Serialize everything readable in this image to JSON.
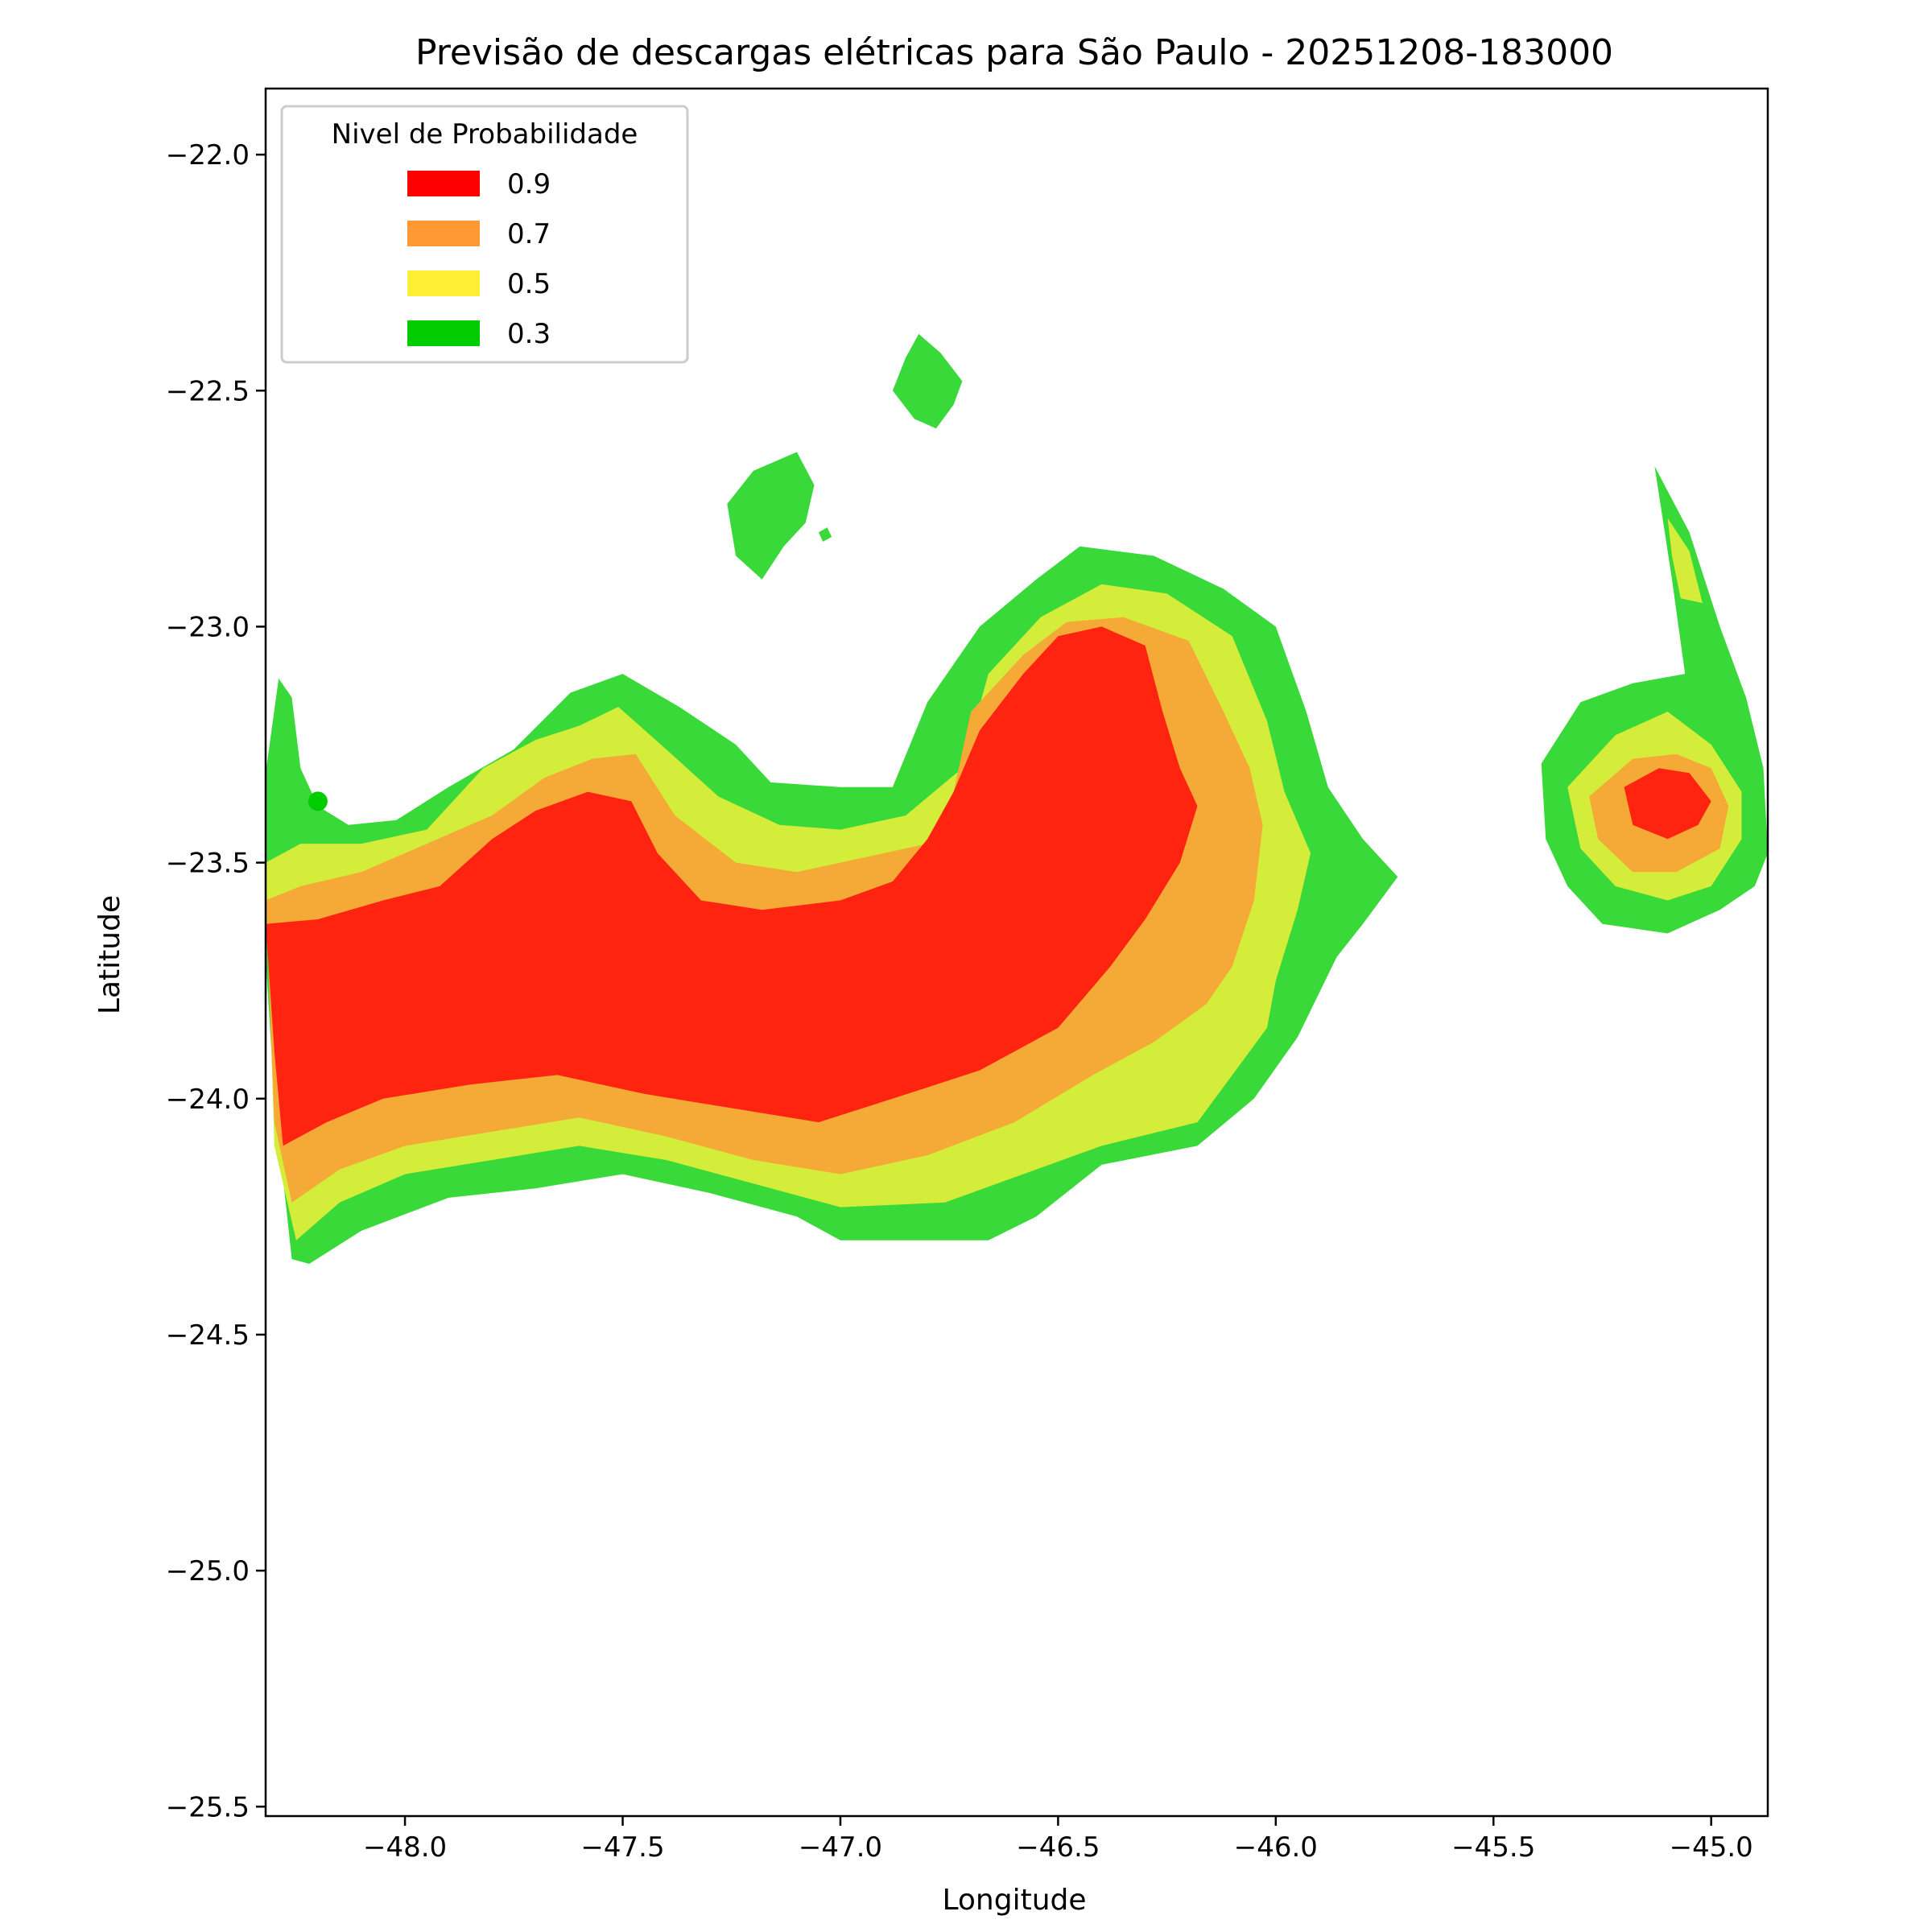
{
  "chart_data": {
    "type": "contour",
    "title": "Previsão de descargas elétricas para São Paulo - 20251208-183000",
    "xlabel": "Longitude",
    "ylabel": "Latitude",
    "xlim": [
      -48.32,
      -44.87
    ],
    "ylim": [
      -25.52,
      -21.86
    ],
    "x_ticks": [
      -48.0,
      -47.5,
      -47.0,
      -46.5,
      -46.0,
      -45.5,
      -45.0
    ],
    "x_tick_labels": [
      "−48.0",
      "−47.5",
      "−47.0",
      "−46.5",
      "−46.0",
      "−45.5",
      "−45.0"
    ],
    "y_ticks": [
      -22.0,
      -22.5,
      -23.0,
      -23.5,
      -24.0,
      -24.5,
      -25.0,
      -25.5
    ],
    "y_tick_labels": [
      "−22.0",
      "−22.5",
      "−23.0",
      "−23.5",
      "−24.0",
      "−24.5",
      "−25.0",
      "−25.5"
    ],
    "grid": false,
    "legend": {
      "title": "Nivel de Probabilidade",
      "placement": "top-left",
      "entries": [
        {
          "label": "0.9",
          "color": "#ff0000"
        },
        {
          "label": "0.7",
          "color": "#ff9933"
        },
        {
          "label": "0.5",
          "color": "#ffee33"
        },
        {
          "label": "0.3",
          "color": "#00cc00"
        }
      ]
    },
    "levels": [
      {
        "level": "0.3",
        "color": "#38d938",
        "regions": [
          [
            [
              -48.32,
              -23.31
            ],
            [
              -48.29,
              -23.11
            ],
            [
              -48.26,
              -23.15
            ],
            [
              -48.24,
              -23.3
            ],
            [
              -48.2,
              -23.38
            ],
            [
              -48.13,
              -23.42
            ],
            [
              -48.02,
              -23.41
            ],
            [
              -47.9,
              -23.34
            ],
            [
              -47.75,
              -23.26
            ],
            [
              -47.62,
              -23.14
            ],
            [
              -47.5,
              -23.1
            ],
            [
              -47.37,
              -23.17
            ],
            [
              -47.24,
              -23.25
            ],
            [
              -47.16,
              -23.33
            ],
            [
              -47.0,
              -23.34
            ],
            [
              -46.88,
              -23.34
            ],
            [
              -46.8,
              -23.16
            ],
            [
              -46.68,
              -23.0
            ],
            [
              -46.55,
              -22.9
            ],
            [
              -46.45,
              -22.83
            ],
            [
              -46.28,
              -22.85
            ],
            [
              -46.12,
              -22.92
            ],
            [
              -46.0,
              -23.0
            ],
            [
              -45.93,
              -23.18
            ],
            [
              -45.88,
              -23.34
            ],
            [
              -45.8,
              -23.45
            ],
            [
              -45.72,
              -23.53
            ],
            [
              -45.8,
              -23.63
            ],
            [
              -45.86,
              -23.7
            ],
            [
              -45.95,
              -23.87
            ],
            [
              -46.05,
              -24.0
            ],
            [
              -46.18,
              -24.1
            ],
            [
              -46.4,
              -24.14
            ],
            [
              -46.55,
              -24.25
            ],
            [
              -46.66,
              -24.3
            ],
            [
              -46.85,
              -24.3
            ],
            [
              -47.0,
              -24.3
            ],
            [
              -47.1,
              -24.25
            ],
            [
              -47.3,
              -24.2
            ],
            [
              -47.5,
              -24.16
            ],
            [
              -47.7,
              -24.19
            ],
            [
              -47.9,
              -24.21
            ],
            [
              -48.1,
              -24.28
            ],
            [
              -48.22,
              -24.35
            ],
            [
              -48.26,
              -24.34
            ],
            [
              -48.3,
              -24.0
            ],
            [
              -48.32,
              -23.7
            ]
          ],
          [
            [
              -45.39,
              -23.29
            ],
            [
              -45.3,
              -23.16
            ],
            [
              -45.18,
              -23.12
            ],
            [
              -45.06,
              -23.1
            ],
            [
              -45.09,
              -22.9
            ],
            [
              -45.13,
              -22.66
            ],
            [
              -45.05,
              -22.8
            ],
            [
              -44.98,
              -23.0
            ],
            [
              -44.92,
              -23.15
            ],
            [
              -44.88,
              -23.3
            ],
            [
              -44.87,
              -23.48
            ],
            [
              -44.9,
              -23.55
            ],
            [
              -44.98,
              -23.6
            ],
            [
              -45.1,
              -23.65
            ],
            [
              -45.25,
              -23.63
            ],
            [
              -45.33,
              -23.55
            ],
            [
              -45.38,
              -23.45
            ]
          ],
          [
            [
              -46.85,
              -22.43
            ],
            [
              -46.82,
              -22.38
            ],
            [
              -46.77,
              -22.42
            ],
            [
              -46.72,
              -22.48
            ],
            [
              -46.74,
              -22.53
            ],
            [
              -46.78,
              -22.58
            ],
            [
              -46.83,
              -22.56
            ],
            [
              -46.88,
              -22.5
            ]
          ],
          [
            [
              -47.26,
              -22.74
            ],
            [
              -47.2,
              -22.67
            ],
            [
              -47.1,
              -22.63
            ],
            [
              -47.06,
              -22.7
            ],
            [
              -47.08,
              -22.78
            ],
            [
              -47.13,
              -22.83
            ],
            [
              -47.18,
              -22.9
            ],
            [
              -47.24,
              -22.85
            ]
          ],
          [
            [
              -47.05,
              -22.8
            ],
            [
              -47.03,
              -22.79
            ],
            [
              -47.02,
              -22.81
            ],
            [
              -47.04,
              -22.82
            ]
          ]
        ]
      },
      {
        "level": "0.5",
        "color": "#d4ed3a",
        "regions": [
          [
            [
              -48.32,
              -23.5
            ],
            [
              -48.24,
              -23.46
            ],
            [
              -48.1,
              -23.46
            ],
            [
              -47.95,
              -23.43
            ],
            [
              -47.82,
              -23.3
            ],
            [
              -47.7,
              -23.24
            ],
            [
              -47.6,
              -23.21
            ],
            [
              -47.51,
              -23.17
            ],
            [
              -47.4,
              -23.26
            ],
            [
              -47.28,
              -23.36
            ],
            [
              -47.14,
              -23.42
            ],
            [
              -47.0,
              -23.43
            ],
            [
              -46.85,
              -23.4
            ],
            [
              -46.72,
              -23.3
            ],
            [
              -46.66,
              -23.1
            ],
            [
              -46.54,
              -22.98
            ],
            [
              -46.4,
              -22.91
            ],
            [
              -46.25,
              -22.93
            ],
            [
              -46.1,
              -23.02
            ],
            [
              -46.02,
              -23.2
            ],
            [
              -45.98,
              -23.35
            ],
            [
              -45.92,
              -23.48
            ],
            [
              -45.95,
              -23.6
            ],
            [
              -46.0,
              -23.75
            ],
            [
              -46.02,
              -23.85
            ],
            [
              -46.06,
              -23.9
            ],
            [
              -46.18,
              -24.05
            ],
            [
              -46.4,
              -24.1
            ],
            [
              -46.55,
              -24.15
            ],
            [
              -46.76,
              -24.22
            ],
            [
              -47.0,
              -24.23
            ],
            [
              -47.2,
              -24.18
            ],
            [
              -47.4,
              -24.13
            ],
            [
              -47.6,
              -24.1
            ],
            [
              -47.8,
              -24.13
            ],
            [
              -48.0,
              -24.16
            ],
            [
              -48.15,
              -24.22
            ],
            [
              -48.25,
              -24.3
            ],
            [
              -48.3,
              -24.1
            ]
          ],
          [
            [
              -45.33,
              -23.34
            ],
            [
              -45.22,
              -23.23
            ],
            [
              -45.1,
              -23.18
            ],
            [
              -45.0,
              -23.25
            ],
            [
              -44.93,
              -23.35
            ],
            [
              -44.93,
              -23.45
            ],
            [
              -45.0,
              -23.55
            ],
            [
              -45.1,
              -23.58
            ],
            [
              -45.22,
              -23.55
            ],
            [
              -45.3,
              -23.47
            ]
          ],
          [
            [
              -45.1,
              -22.77
            ],
            [
              -45.05,
              -22.84
            ],
            [
              -45.02,
              -22.95
            ],
            [
              -45.07,
              -22.94
            ],
            [
              -45.09,
              -22.85
            ]
          ]
        ]
      },
      {
        "level": "0.7",
        "color": "#f5a936",
        "regions": [
          [
            [
              -48.32,
              -23.58
            ],
            [
              -48.24,
              -23.55
            ],
            [
              -48.1,
              -23.52
            ],
            [
              -47.95,
              -23.46
            ],
            [
              -47.8,
              -23.4
            ],
            [
              -47.68,
              -23.32
            ],
            [
              -47.57,
              -23.28
            ],
            [
              -47.47,
              -23.27
            ],
            [
              -47.38,
              -23.4
            ],
            [
              -47.24,
              -23.5
            ],
            [
              -47.1,
              -23.52
            ],
            [
              -46.9,
              -23.48
            ],
            [
              -46.8,
              -23.46
            ],
            [
              -46.74,
              -23.35
            ],
            [
              -46.7,
              -23.18
            ],
            [
              -46.58,
              -23.06
            ],
            [
              -46.48,
              -22.99
            ],
            [
              -46.35,
              -22.98
            ],
            [
              -46.2,
              -23.03
            ],
            [
              -46.12,
              -23.18
            ],
            [
              -46.06,
              -23.3
            ],
            [
              -46.03,
              -23.42
            ],
            [
              -46.05,
              -23.58
            ],
            [
              -46.1,
              -23.72
            ],
            [
              -46.16,
              -23.8
            ],
            [
              -46.28,
              -23.88
            ],
            [
              -46.42,
              -23.95
            ],
            [
              -46.6,
              -24.05
            ],
            [
              -46.8,
              -24.12
            ],
            [
              -47.0,
              -24.16
            ],
            [
              -47.2,
              -24.13
            ],
            [
              -47.4,
              -24.08
            ],
            [
              -47.6,
              -24.04
            ],
            [
              -47.8,
              -24.07
            ],
            [
              -48.0,
              -24.1
            ],
            [
              -48.15,
              -24.15
            ],
            [
              -48.26,
              -24.22
            ],
            [
              -48.3,
              -24.05
            ]
          ],
          [
            [
              -45.28,
              -23.36
            ],
            [
              -45.18,
              -23.28
            ],
            [
              -45.08,
              -23.27
            ],
            [
              -45.0,
              -23.3
            ],
            [
              -44.96,
              -23.38
            ],
            [
              -44.98,
              -23.47
            ],
            [
              -45.08,
              -23.52
            ],
            [
              -45.18,
              -23.52
            ],
            [
              -45.26,
              -23.45
            ]
          ]
        ]
      },
      {
        "level": "0.9",
        "color": "#ff2410",
        "regions": [
          [
            [
              -48.32,
              -23.63
            ],
            [
              -48.2,
              -23.62
            ],
            [
              -48.05,
              -23.58
            ],
            [
              -47.92,
              -23.55
            ],
            [
              -47.8,
              -23.45
            ],
            [
              -47.7,
              -23.39
            ],
            [
              -47.58,
              -23.35
            ],
            [
              -47.48,
              -23.37
            ],
            [
              -47.42,
              -23.48
            ],
            [
              -47.32,
              -23.58
            ],
            [
              -47.18,
              -23.6
            ],
            [
              -47.0,
              -23.58
            ],
            [
              -46.88,
              -23.54
            ],
            [
              -46.8,
              -23.45
            ],
            [
              -46.74,
              -23.35
            ],
            [
              -46.68,
              -23.22
            ],
            [
              -46.58,
              -23.1
            ],
            [
              -46.5,
              -23.02
            ],
            [
              -46.4,
              -23.0
            ],
            [
              -46.3,
              -23.04
            ],
            [
              -46.26,
              -23.18
            ],
            [
              -46.22,
              -23.3
            ],
            [
              -46.18,
              -23.38
            ],
            [
              -46.22,
              -23.5
            ],
            [
              -46.3,
              -23.62
            ],
            [
              -46.38,
              -23.72
            ],
            [
              -46.5,
              -23.85
            ],
            [
              -46.68,
              -23.94
            ],
            [
              -46.88,
              -24.0
            ],
            [
              -47.05,
              -24.05
            ],
            [
              -47.25,
              -24.02
            ],
            [
              -47.45,
              -23.99
            ],
            [
              -47.65,
              -23.95
            ],
            [
              -47.85,
              -23.97
            ],
            [
              -48.05,
              -24.0
            ],
            [
              -48.18,
              -24.05
            ],
            [
              -48.28,
              -24.1
            ],
            [
              -48.3,
              -23.9
            ]
          ],
          [
            [
              -45.2,
              -23.34
            ],
            [
              -45.12,
              -23.3
            ],
            [
              -45.05,
              -23.31
            ],
            [
              -45.0,
              -23.37
            ],
            [
              -45.03,
              -23.42
            ],
            [
              -45.1,
              -23.45
            ],
            [
              -45.18,
              -23.42
            ]
          ]
        ]
      }
    ],
    "points": [
      {
        "x": -48.2,
        "y": -23.37,
        "color": "#00cc00"
      }
    ]
  }
}
